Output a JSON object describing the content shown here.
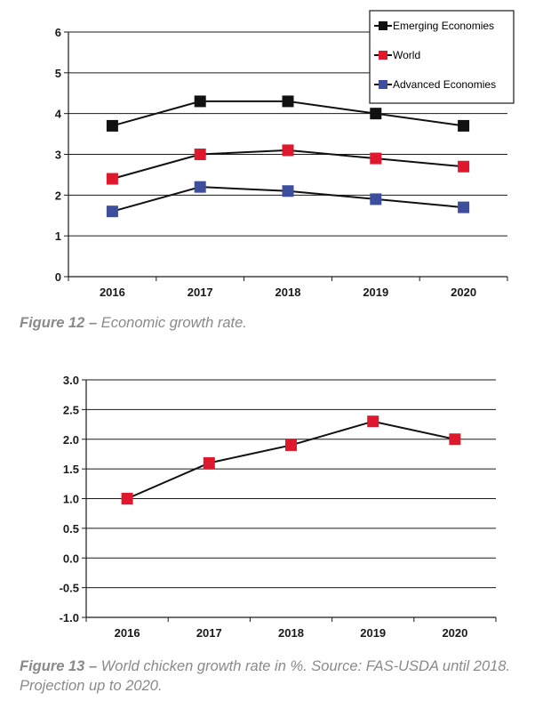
{
  "charts": {
    "fig12": {
      "caption_prefix": "Figure 12 –",
      "caption_text": " Economic growth rate.",
      "chart_data": {
        "type": "line",
        "categories": [
          "2016",
          "2017",
          "2018",
          "2019",
          "2020"
        ],
        "ylim": [
          0,
          6
        ],
        "yticks": [
          "0",
          "1",
          "2",
          "3",
          "4",
          "5",
          "6"
        ],
        "grid": true,
        "legend": "top-right",
        "series": [
          {
            "name": "Emerging Economies",
            "color": "#111111",
            "values": [
              3.7,
              4.3,
              4.3,
              4.0,
              3.7
            ]
          },
          {
            "name": "World",
            "color": "#e0182d",
            "values": [
              2.4,
              3.0,
              3.1,
              2.9,
              2.7
            ]
          },
          {
            "name": "Advanced Economies",
            "color": "#3d4f9c",
            "values": [
              1.6,
              2.2,
              2.1,
              1.9,
              1.7
            ]
          }
        ]
      }
    },
    "fig13": {
      "caption_prefix": "Figure 13 –",
      "caption_text": " World chicken growth rate in %. Source: FAS-USDA until 2018. Projection up to 2020.",
      "chart_data": {
        "type": "line",
        "categories": [
          "2016",
          "2017",
          "2018",
          "2019",
          "2020"
        ],
        "ylim": [
          -1.0,
          3.0
        ],
        "yticks": [
          "-1.0",
          "-0.5",
          "0.0",
          "0.5",
          "1.0",
          "1.5",
          "2.0",
          "2.5",
          "3.0"
        ],
        "grid": true,
        "legend": "none",
        "series": [
          {
            "color": "#e0182d",
            "values": [
              1.0,
              1.6,
              1.9,
              2.3,
              2.0
            ]
          }
        ]
      }
    }
  }
}
